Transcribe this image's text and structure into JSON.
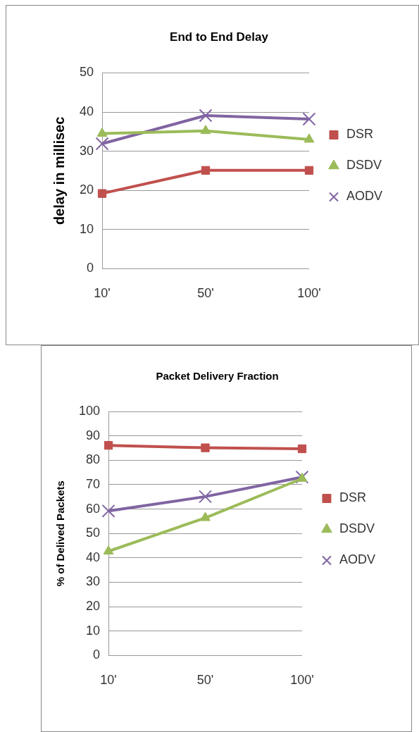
{
  "chart_data": [
    {
      "type": "line",
      "title": "End to End Delay",
      "ylabel": "delay in millisec",
      "categories": [
        "10'",
        "50'",
        "100'"
      ],
      "ylim": [
        0,
        50
      ],
      "yticks": [
        0,
        10,
        20,
        30,
        40,
        50
      ],
      "grid": "y",
      "legend": "right",
      "series": [
        {
          "name": "DSR",
          "color": "#c0504d",
          "marker": "square",
          "values": [
            19.2,
            25.1,
            25.1
          ]
        },
        {
          "name": "DSDV",
          "color": "#9bbb59",
          "marker": "triangle",
          "values": [
            34.5,
            35.2,
            33.0
          ]
        },
        {
          "name": "AODV",
          "color": "#8064a2",
          "marker": "cross",
          "values": [
            31.9,
            39.1,
            38.2
          ]
        }
      ]
    },
    {
      "type": "line",
      "title": "Packet Delivery Fraction",
      "ylabel": "% of Delived Packets",
      "categories": [
        "10'",
        "50'",
        "100'"
      ],
      "ylim": [
        0,
        100
      ],
      "yticks": [
        0,
        10,
        20,
        30,
        40,
        50,
        60,
        70,
        80,
        90,
        100
      ],
      "grid": "y",
      "legend": "right",
      "series": [
        {
          "name": "DSR",
          "color": "#c0504d",
          "marker": "square",
          "values": [
            86.1,
            85.1,
            84.7
          ]
        },
        {
          "name": "DSDV",
          "color": "#9bbb59",
          "marker": "triangle",
          "values": [
            42.7,
            56.4,
            72.5
          ]
        },
        {
          "name": "AODV",
          "color": "#8064a2",
          "marker": "cross",
          "values": [
            59.2,
            65.1,
            73.1
          ]
        }
      ]
    }
  ]
}
